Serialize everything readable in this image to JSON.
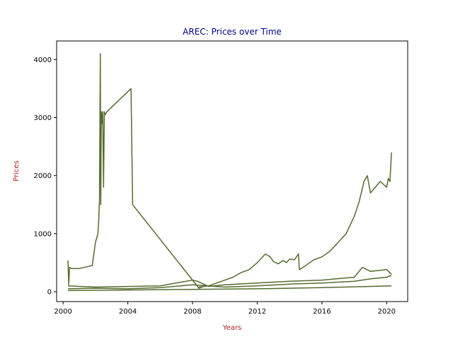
{
  "chart_data": {
    "type": "line",
    "title": "AREC: Prices over Time",
    "xlabel": "Years",
    "ylabel": "Prices",
    "xlim": [
      1999.6,
      2021.3
    ],
    "ylim": [
      -170,
      4320
    ],
    "xticks": [
      2000,
      2004,
      2008,
      2012,
      2016,
      2020
    ],
    "yticks": [
      0,
      1000,
      2000,
      3000,
      4000
    ],
    "grid": false,
    "legend": "none",
    "colors": {
      "line": "#556b2f",
      "title": "#00008b",
      "axis_label": "#b22222"
    },
    "series": [
      {
        "x": [
          2000.3,
          2000.35,
          2000.4,
          2000.5,
          2001.0,
          2001.8,
          2001.9,
          2002.0,
          2002.1,
          2002.15,
          2002.2,
          2002.25,
          2002.3,
          2002.33,
          2002.36,
          2002.4,
          2002.45,
          2002.5,
          2002.55,
          2002.6,
          2002.7,
          2004.2,
          2004.3,
          2008.4,
          2008.6
        ],
        "y": [
          540,
          120,
          420,
          400,
          400,
          450,
          650,
          850,
          950,
          1000,
          1200,
          1600,
          4100,
          1500,
          3100,
          2900,
          3100,
          1800,
          3100,
          3050,
          3100,
          3500,
          1500,
          60,
          80
        ]
      },
      {
        "x": [
          2008.4,
          2009.0,
          2009.5,
          2010.0,
          2010.5,
          2011.0,
          2011.5,
          2012.0,
          2012.5,
          2012.8,
          2013.0,
          2013.3,
          2013.6,
          2013.8,
          2014.0,
          2014.3,
          2014.55,
          2014.6,
          2015.0,
          2015.5,
          2016.0,
          2016.5,
          2017.0,
          2017.5,
          2018.0,
          2018.3,
          2018.6,
          2018.8,
          2019.0,
          2019.3,
          2019.6,
          2019.8,
          2020.0,
          2020.1,
          2020.2,
          2020.3
        ],
        "y": [
          80,
          100,
          150,
          200,
          250,
          330,
          380,
          500,
          650,
          600,
          520,
          480,
          540,
          500,
          560,
          550,
          650,
          380,
          450,
          550,
          600,
          700,
          850,
          1000,
          1300,
          1550,
          1900,
          2000,
          1700,
          1800,
          1900,
          1850,
          1800,
          1950,
          1900,
          2400
        ]
      },
      {
        "x": [
          2000.3,
          2002.0,
          2004.0,
          2006.0,
          2008.0,
          2008.3,
          2009.0,
          2010.0,
          2012.0,
          2014.0,
          2016.0,
          2018.0,
          2018.5,
          2019.0,
          2020.0,
          2020.3
        ],
        "y": [
          100,
          80,
          90,
          100,
          200,
          180,
          90,
          120,
          150,
          180,
          200,
          250,
          420,
          350,
          380,
          300
        ]
      },
      {
        "x": [
          2000.3,
          2002.0,
          2004.0,
          2006.0,
          2008.0,
          2010.0,
          2012.0,
          2014.0,
          2016.0,
          2018.0,
          2019.0,
          2020.0,
          2020.3
        ],
        "y": [
          50,
          60,
          50,
          70,
          120,
          80,
          100,
          130,
          150,
          180,
          220,
          250,
          280
        ]
      },
      {
        "x": [
          2000.3,
          2004.0,
          2008.0,
          2012.0,
          2016.0,
          2020.3
        ],
        "y": [
          20,
          30,
          40,
          50,
          70,
          100
        ]
      }
    ]
  }
}
